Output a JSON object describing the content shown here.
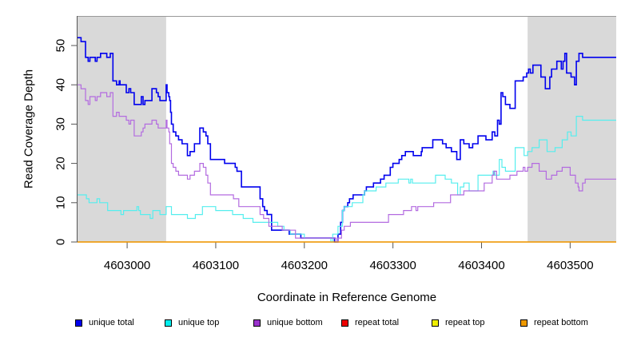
{
  "chart_data": {
    "type": "line",
    "step": true,
    "title": "",
    "xlabel": "Coordinate in Reference Genome",
    "ylabel": "Read Coverage Depth",
    "xlim": [
      4602944,
      4603552
    ],
    "ylim": [
      0,
      57
    ],
    "x_ticks": [
      4603000,
      4603100,
      4603200,
      4603300,
      4603400,
      4603500
    ],
    "x_tick_labels": [
      "4603000",
      "4603100",
      "4603200",
      "4603300",
      "4603400",
      "4603500"
    ],
    "y_ticks": [
      0,
      10,
      20,
      30,
      40,
      50
    ],
    "y_tick_labels": [
      "0",
      "10",
      "20",
      "30",
      "40",
      "50"
    ],
    "shaded_regions": [
      [
        4602944,
        4603044
      ],
      [
        4603452,
        4603552
      ]
    ],
    "shade_color": "#d9d9d9",
    "legend_placement": "bottom",
    "series": [
      {
        "name": "unique total",
        "color": "#0000ee",
        "points": [
          [
            4602944,
            52
          ],
          [
            4602948,
            51
          ],
          [
            4602953,
            47
          ],
          [
            4602956,
            46
          ],
          [
            4602958,
            47
          ],
          [
            4602964,
            46
          ],
          [
            4602966,
            47
          ],
          [
            4602970,
            48
          ],
          [
            4602977,
            47
          ],
          [
            4602981,
            48
          ],
          [
            4602984,
            41
          ],
          [
            4602988,
            40
          ],
          [
            4602991,
            41
          ],
          [
            4602992,
            40
          ],
          [
            4602999,
            38
          ],
          [
            4603002,
            39
          ],
          [
            4603004,
            38
          ],
          [
            4603008,
            35
          ],
          [
            4603016,
            37
          ],
          [
            4603018,
            35
          ],
          [
            4603020,
            36
          ],
          [
            4603028,
            39
          ],
          [
            4603033,
            38
          ],
          [
            4603035,
            37
          ],
          [
            4603037,
            36
          ],
          [
            4603044,
            40
          ],
          [
            4603045,
            38
          ],
          [
            4603047,
            37
          ],
          [
            4603048,
            36
          ],
          [
            4603049,
            33
          ],
          [
            4603050,
            30
          ],
          [
            4603052,
            28
          ],
          [
            4603055,
            27
          ],
          [
            4603058,
            26
          ],
          [
            4603062,
            25
          ],
          [
            4603068,
            22
          ],
          [
            4603071,
            23
          ],
          [
            4603076,
            25
          ],
          [
            4603082,
            29
          ],
          [
            4603086,
            28
          ],
          [
            4603089,
            27
          ],
          [
            4603091,
            25
          ],
          [
            4603094,
            21
          ],
          [
            4603110,
            20
          ],
          [
            4603122,
            19
          ],
          [
            4603124,
            18
          ],
          [
            4603129,
            14
          ],
          [
            4603150,
            11
          ],
          [
            4603153,
            9
          ],
          [
            4603155,
            8
          ],
          [
            4603158,
            7
          ],
          [
            4603163,
            3
          ],
          [
            4603183,
            2
          ],
          [
            4603196,
            1
          ],
          [
            4603234,
            0
          ],
          [
            4603238,
            2
          ],
          [
            4603241,
            5
          ],
          [
            4603243,
            8
          ],
          [
            4603245,
            9
          ],
          [
            4603249,
            10
          ],
          [
            4603251,
            11
          ],
          [
            4603255,
            12
          ],
          [
            4603268,
            13
          ],
          [
            4603270,
            14
          ],
          [
            4603278,
            15
          ],
          [
            4603286,
            16
          ],
          [
            4603290,
            17
          ],
          [
            4603297,
            19
          ],
          [
            4603300,
            20
          ],
          [
            4603307,
            21
          ],
          [
            4603310,
            22
          ],
          [
            4603314,
            23
          ],
          [
            4603323,
            22
          ],
          [
            4603332,
            23
          ],
          [
            4603333,
            24
          ],
          [
            4603345,
            26
          ],
          [
            4603356,
            25
          ],
          [
            4603360,
            24
          ],
          [
            4603366,
            23
          ],
          [
            4603372,
            21
          ],
          [
            4603376,
            26
          ],
          [
            4603380,
            25
          ],
          [
            4603386,
            24
          ],
          [
            4603390,
            25
          ],
          [
            4603396,
            27
          ],
          [
            4603405,
            26
          ],
          [
            4603412,
            28
          ],
          [
            4603415,
            27
          ],
          [
            4603418,
            31
          ],
          [
            4603420,
            30
          ],
          [
            4603422,
            38
          ],
          [
            4603424,
            37
          ],
          [
            4603427,
            35
          ],
          [
            4603432,
            34
          ],
          [
            4603438,
            41
          ],
          [
            4603447,
            42
          ],
          [
            4603451,
            43
          ],
          [
            4603453,
            44
          ],
          [
            4603455,
            43
          ],
          [
            4603458,
            45
          ],
          [
            4603467,
            42
          ],
          [
            4603472,
            39
          ],
          [
            4603477,
            42
          ],
          [
            4603479,
            44
          ],
          [
            4603485,
            46
          ],
          [
            4603490,
            44
          ],
          [
            4603492,
            46
          ],
          [
            4603494,
            48
          ],
          [
            4603496,
            43
          ],
          [
            4603501,
            42
          ],
          [
            4603505,
            40
          ],
          [
            4603507,
            46
          ],
          [
            4603510,
            48
          ],
          [
            4603514,
            47
          ],
          [
            4603552,
            47
          ]
        ]
      },
      {
        "name": "unique top",
        "color": "#55eeee",
        "points": [
          [
            4602944,
            12
          ],
          [
            4602954,
            11
          ],
          [
            4602957,
            10
          ],
          [
            4602966,
            11
          ],
          [
            4602969,
            10
          ],
          [
            4602978,
            8
          ],
          [
            4602993,
            7
          ],
          [
            4602996,
            8
          ],
          [
            4603011,
            9
          ],
          [
            4603013,
            8
          ],
          [
            4603015,
            7
          ],
          [
            4603026,
            6
          ],
          [
            4603029,
            8
          ],
          [
            4603037,
            7
          ],
          [
            4603044,
            9
          ],
          [
            4603050,
            7
          ],
          [
            4603068,
            6
          ],
          [
            4603077,
            7
          ],
          [
            4603085,
            9
          ],
          [
            4603100,
            8
          ],
          [
            4603119,
            7
          ],
          [
            4603131,
            6
          ],
          [
            4603142,
            5
          ],
          [
            4603170,
            4
          ],
          [
            4603177,
            3
          ],
          [
            4603184,
            2
          ],
          [
            4603200,
            1
          ],
          [
            4603230,
            0
          ],
          [
            4603232,
            2
          ],
          [
            4603238,
            4
          ],
          [
            4603243,
            8
          ],
          [
            4603245,
            9
          ],
          [
            4603254,
            10
          ],
          [
            4603266,
            12
          ],
          [
            4603268,
            13
          ],
          [
            4603281,
            14
          ],
          [
            4603292,
            15
          ],
          [
            4603306,
            16
          ],
          [
            4603318,
            15
          ],
          [
            4603320,
            16
          ],
          [
            4603322,
            15
          ],
          [
            4603348,
            17
          ],
          [
            4603359,
            16
          ],
          [
            4603366,
            15
          ],
          [
            4603373,
            12
          ],
          [
            4603376,
            14
          ],
          [
            4603380,
            15
          ],
          [
            4603386,
            13
          ],
          [
            4603396,
            17
          ],
          [
            4603413,
            18
          ],
          [
            4603415,
            17
          ],
          [
            4603420,
            21
          ],
          [
            4603423,
            19
          ],
          [
            4603427,
            18
          ],
          [
            4603438,
            24
          ],
          [
            4603448,
            22
          ],
          [
            4603452,
            23
          ],
          [
            4603457,
            24
          ],
          [
            4603465,
            26
          ],
          [
            4603474,
            23
          ],
          [
            4603483,
            24
          ],
          [
            4603491,
            26
          ],
          [
            4603497,
            28
          ],
          [
            4603501,
            27
          ],
          [
            4603507,
            32
          ],
          [
            4603514,
            31
          ],
          [
            4603552,
            31
          ]
        ]
      },
      {
        "name": "unique bottom",
        "color": "#b36be0",
        "points": [
          [
            4602944,
            40
          ],
          [
            4602948,
            39
          ],
          [
            4602953,
            36
          ],
          [
            4602956,
            35
          ],
          [
            4602958,
            37
          ],
          [
            4602964,
            36
          ],
          [
            4602966,
            37
          ],
          [
            4602970,
            38
          ],
          [
            4602977,
            37
          ],
          [
            4602981,
            38
          ],
          [
            4602984,
            32
          ],
          [
            4602988,
            33
          ],
          [
            4602991,
            32
          ],
          [
            4602999,
            31
          ],
          [
            4603002,
            30
          ],
          [
            4603004,
            31
          ],
          [
            4603008,
            27
          ],
          [
            4603016,
            28
          ],
          [
            4603018,
            29
          ],
          [
            4603020,
            30
          ],
          [
            4603028,
            31
          ],
          [
            4603033,
            30
          ],
          [
            4603035,
            29
          ],
          [
            4603044,
            31
          ],
          [
            4603045,
            29
          ],
          [
            4603047,
            28
          ],
          [
            4603048,
            25
          ],
          [
            4603050,
            20
          ],
          [
            4603052,
            19
          ],
          [
            4603055,
            18
          ],
          [
            4603058,
            17
          ],
          [
            4603068,
            16
          ],
          [
            4603071,
            17
          ],
          [
            4603076,
            18
          ],
          [
            4603082,
            20
          ],
          [
            4603086,
            19
          ],
          [
            4603089,
            17
          ],
          [
            4603091,
            15
          ],
          [
            4603094,
            12
          ],
          [
            4603120,
            11
          ],
          [
            4603126,
            9
          ],
          [
            4603150,
            7
          ],
          [
            4603154,
            6
          ],
          [
            4603160,
            4
          ],
          [
            4603175,
            3
          ],
          [
            4603190,
            1
          ],
          [
            4603236,
            0
          ],
          [
            4603238,
            1
          ],
          [
            4603242,
            3
          ],
          [
            4603245,
            4
          ],
          [
            4603252,
            5
          ],
          [
            4603295,
            7
          ],
          [
            4603312,
            8
          ],
          [
            4603321,
            9
          ],
          [
            4603326,
            8
          ],
          [
            4603328,
            9
          ],
          [
            4603346,
            10
          ],
          [
            4603365,
            12
          ],
          [
            4603380,
            13
          ],
          [
            4603403,
            15
          ],
          [
            4603412,
            17
          ],
          [
            4603414,
            18
          ],
          [
            4603417,
            16
          ],
          [
            4603432,
            17
          ],
          [
            4603440,
            18
          ],
          [
            4603447,
            19
          ],
          [
            4603449,
            18
          ],
          [
            4603452,
            19
          ],
          [
            4603457,
            20
          ],
          [
            4603465,
            18
          ],
          [
            4603473,
            16
          ],
          [
            4603479,
            17
          ],
          [
            4603485,
            18
          ],
          [
            4603491,
            19
          ],
          [
            4603500,
            17
          ],
          [
            4603506,
            15
          ],
          [
            4603509,
            14
          ],
          [
            4603510,
            13
          ],
          [
            4603514,
            15
          ],
          [
            4603517,
            16
          ],
          [
            4603552,
            16
          ]
        ]
      },
      {
        "name": "repeat total",
        "color": "#ee0000",
        "points": [
          [
            4602944,
            0
          ],
          [
            4603552,
            0
          ]
        ]
      },
      {
        "name": "repeat top",
        "color": "#eeee00",
        "points": [
          [
            4602944,
            0
          ],
          [
            4603552,
            0
          ]
        ]
      },
      {
        "name": "repeat bottom",
        "color": "#ee9900",
        "points": [
          [
            4602944,
            0
          ],
          [
            4603552,
            0
          ]
        ]
      }
    ],
    "legend": [
      {
        "label": "unique total",
        "color": "#0000ee"
      },
      {
        "label": "unique top",
        "color": "#00eeee"
      },
      {
        "label": "unique bottom",
        "color": "#9a32cd"
      },
      {
        "label": "repeat total",
        "color": "#ee0000"
      },
      {
        "label": "repeat top",
        "color": "#eeee00"
      },
      {
        "label": "repeat bottom",
        "color": "#ee9900"
      }
    ]
  }
}
